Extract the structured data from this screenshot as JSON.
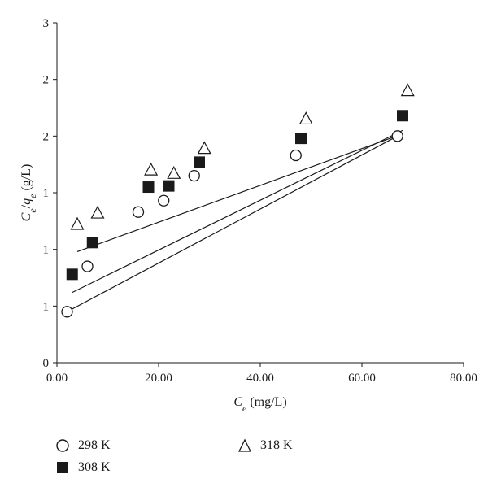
{
  "chart_data": {
    "type": "scatter",
    "xlabel": "C_e (mg/L)",
    "ylabel": "C_e/q_e (g/L)",
    "x_ticks": [
      "0.00",
      "20.00",
      "40.00",
      "60.00",
      "80.00"
    ],
    "y_tick_labels": [
      "0",
      "1",
      "1",
      "1",
      "2",
      "2",
      "3"
    ],
    "xlim": [
      0,
      80
    ],
    "ylim": [
      0,
      3
    ],
    "grid": false,
    "legend_position": "bottom",
    "series": [
      {
        "name": "298 K",
        "marker": "circle-open",
        "x": [
          2.0,
          6.0,
          16.0,
          21.0,
          27.0,
          47.0,
          67.0
        ],
        "y": [
          0.45,
          0.85,
          1.33,
          1.43,
          1.65,
          1.83,
          2.0
        ],
        "fit": {
          "x": [
            2.0,
            67.0
          ],
          "y": [
            0.45,
            2.0
          ]
        }
      },
      {
        "name": "308 K",
        "marker": "square-filled",
        "x": [
          3.0,
          7.0,
          18.0,
          22.0,
          28.0,
          48.0,
          68.0
        ],
        "y": [
          0.78,
          1.06,
          1.55,
          1.56,
          1.77,
          1.98,
          2.18
        ],
        "fit": {
          "x": [
            3.0,
            68.0
          ],
          "y": [
            0.62,
            2.05
          ]
        }
      },
      {
        "name": "318 K",
        "marker": "triangle-open",
        "x": [
          4.0,
          8.0,
          18.5,
          23.0,
          29.0,
          49.0,
          69.0
        ],
        "y": [
          1.22,
          1.32,
          1.7,
          1.67,
          1.89,
          2.15,
          2.4
        ],
        "fit": {
          "x": [
            4.0,
            68.0
          ],
          "y": [
            0.98,
            2.02
          ]
        }
      }
    ]
  },
  "legend": {
    "items": [
      {
        "key": "298",
        "label": "298 K",
        "marker": "circle-open"
      },
      {
        "key": "308",
        "label": "308 K",
        "marker": "square-filled"
      },
      {
        "key": "318",
        "label": "318 K",
        "marker": "triangle-open"
      }
    ]
  },
  "colors": {
    "ink": "#1a1a1a",
    "background": "#ffffff"
  }
}
